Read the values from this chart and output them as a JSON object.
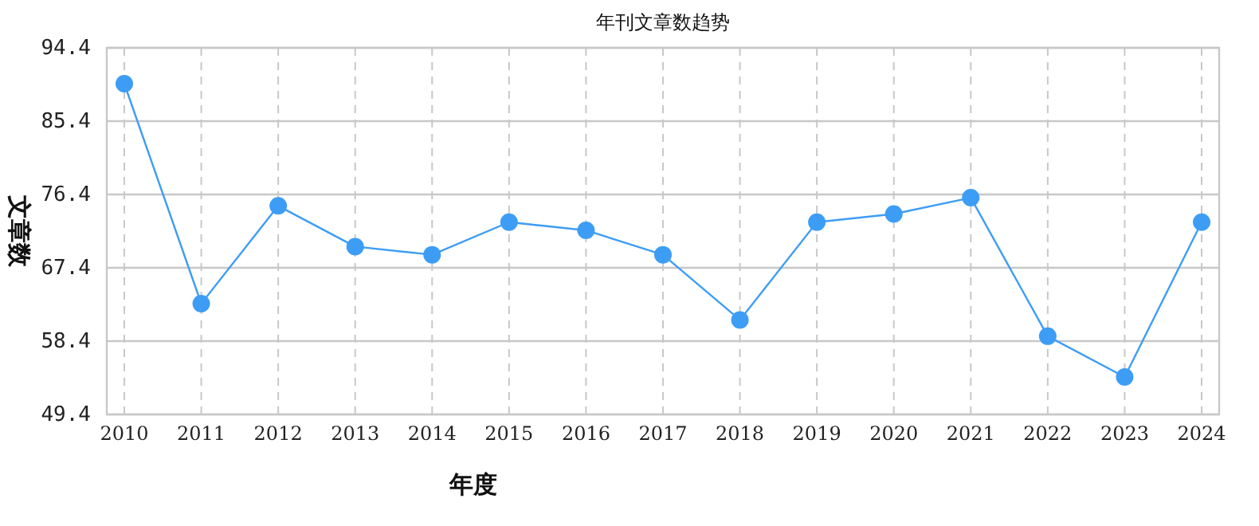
{
  "chart_data": {
    "type": "line",
    "title": "年刊文章数趋势",
    "xlabel": "年度",
    "ylabel": "文章数",
    "categories": [
      "2010",
      "2011",
      "2012",
      "2013",
      "2014",
      "2015",
      "2016",
      "2017",
      "2018",
      "2019",
      "2020",
      "2021",
      "2022",
      "2023",
      "2024"
    ],
    "series": [
      {
        "color": "#3d9df5",
        "values": [
          90,
          63,
          75,
          70,
          69,
          73,
          72,
          69,
          61,
          73,
          74,
          76,
          59,
          54,
          73
        ]
      }
    ],
    "ylim": [
      49.4,
      94.4
    ],
    "yticks": [
      49.4,
      58.4,
      67.4,
      76.4,
      85.4,
      94.4
    ],
    "grid": true,
    "marker": "circle",
    "line_style": "solid"
  }
}
